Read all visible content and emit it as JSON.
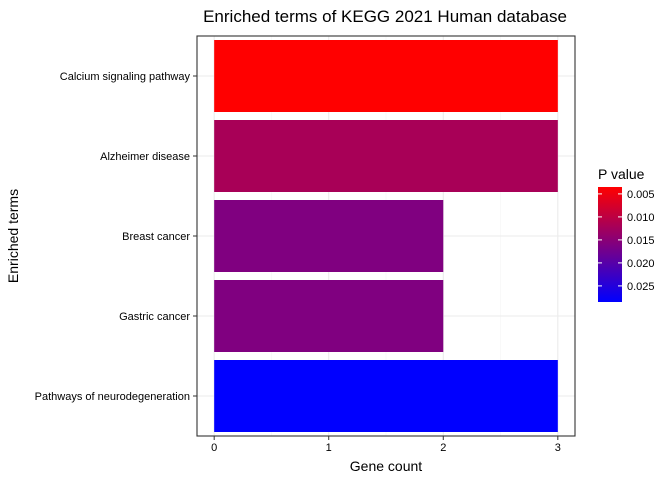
{
  "chart_data": {
    "type": "bar",
    "orientation": "horizontal",
    "title": "Enriched terms of KEGG 2021 Human database",
    "xlabel": "Gene count",
    "ylabel": "Enriched terms",
    "categories": [
      "Calcium signaling pathway",
      "Alzheimer disease",
      "Breast cancer",
      "Gastric cancer",
      "Pathways of neurodegeneration"
    ],
    "values": [
      3,
      3,
      2,
      2,
      3
    ],
    "p_values": [
      0.0035,
      0.012,
      0.016,
      0.016,
      0.0285
    ],
    "xlim": [
      -0.15,
      3.15
    ],
    "xticks": [
      "0",
      "1",
      "2",
      "3"
    ],
    "grid": true,
    "legend": {
      "title": "P value",
      "placement": "right",
      "range": [
        0.0035,
        0.0285
      ],
      "ticks": [
        "0.005",
        "0.010",
        "0.015",
        "0.020",
        "0.025"
      ],
      "tick_values": [
        0.005,
        0.01,
        0.015,
        0.02,
        0.025
      ],
      "color_low": "#ff0000",
      "color_high": "#0000ff"
    },
    "colors": {
      "grid_major": "#ebebeb",
      "grid_minor": "#f5f5f5",
      "panel_border": "#333333"
    }
  }
}
